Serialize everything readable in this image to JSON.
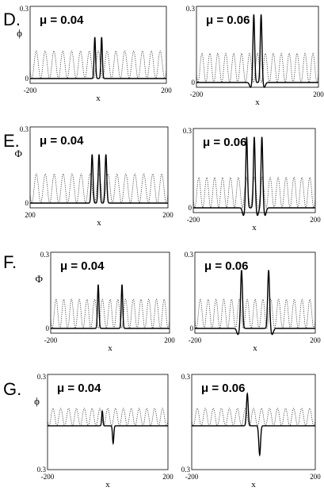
{
  "chart_data": [
    {
      "panel": "D",
      "type": "line",
      "plots": [
        {
          "mu_label": "μ = 0.04",
          "y_tick_top": "0.3",
          "y_tick_bottom": "0",
          "y_axis_label": "ϕ",
          "x_ticks": [
            "-200",
            "200"
          ],
          "x_axis_label": "x",
          "pulses": [
            {
              "center": -10,
              "amp": 0.18,
              "sigma": 3.0
            },
            {
              "center": 10,
              "amp": 0.18,
              "sigma": 3.0
            }
          ],
          "dip": 0.0
        },
        {
          "mu_label": "μ = 0.06",
          "y_tick_top": "0.3",
          "y_tick_bottom": "0",
          "y_axis_label": "",
          "x_ticks": [
            "-200",
            "200"
          ],
          "x_axis_label": "x",
          "pulses": [
            {
              "center": -12,
              "amp": 0.28,
              "sigma": 4.0
            },
            {
              "center": 12,
              "amp": 0.28,
              "sigma": 4.0
            }
          ],
          "dip": 0.02
        }
      ]
    },
    {
      "panel": "E",
      "type": "line",
      "plots": [
        {
          "mu_label": "μ = 0.04",
          "y_tick_top": "0.3",
          "y_tick_bottom": "0",
          "y_axis_label": "Φ",
          "x_ticks": [
            "200",
            "200"
          ],
          "x_axis_label": "x",
          "pulses": [
            {
              "center": -20,
              "amp": 0.2,
              "sigma": 3.5
            },
            {
              "center": 0,
              "amp": 0.2,
              "sigma": 3.5
            },
            {
              "center": 20,
              "amp": 0.2,
              "sigma": 3.5
            }
          ],
          "dip": 0.0
        },
        {
          "mu_label": "μ = 0.06",
          "y_tick_top": "0.3",
          "y_tick_bottom": "0",
          "y_axis_label": "",
          "x_ticks": [
            "-200",
            "200"
          ],
          "x_axis_label": "x",
          "pulses": [
            {
              "center": -25,
              "amp": 0.28,
              "sigma": 4.0
            },
            {
              "center": 0,
              "amp": 0.28,
              "sigma": 4.0
            },
            {
              "center": 25,
              "amp": 0.28,
              "sigma": 4.0
            }
          ],
          "dip": 0.03
        }
      ]
    },
    {
      "panel": "F",
      "type": "line",
      "plots": [
        {
          "mu_label": "μ = 0.04",
          "y_tick_top": "0.3",
          "y_tick_bottom": "0",
          "y_axis_label": "Φ",
          "x_ticks": [
            "-200",
            "200"
          ],
          "x_axis_label": "x",
          "pulses": [
            {
              "center": -40,
              "amp": 0.18,
              "sigma": 3.5
            },
            {
              "center": 40,
              "amp": 0.18,
              "sigma": 3.5
            }
          ],
          "dip": 0.0
        },
        {
          "mu_label": "μ = 0.06",
          "y_tick_top": "0.3",
          "y_tick_bottom": "0",
          "y_axis_label": "",
          "x_ticks": [
            "-200",
            "200"
          ],
          "x_axis_label": "x",
          "pulses": [
            {
              "center": -45,
              "amp": 0.24,
              "sigma": 4.5
            },
            {
              "center": 45,
              "amp": 0.24,
              "sigma": 4.5
            }
          ],
          "dip": 0.025
        }
      ]
    },
    {
      "panel": "G",
      "type": "line",
      "plots": [
        {
          "mu_label": "μ = 0.04",
          "y_tick_top": "0.3",
          "y_tick_bottom": "0.3",
          "y_axis_label": "ϕ",
          "x_ticks": [
            "-200",
            "200"
          ],
          "x_axis_label": "x",
          "pulses": [
            {
              "center": -18,
              "amp": 0.1,
              "sigma": 3.0
            },
            {
              "center": 18,
              "amp": -0.12,
              "sigma": 3.0
            }
          ],
          "dip": 0.0
        },
        {
          "mu_label": "μ = 0.06",
          "y_tick_top": "0.3",
          "y_tick_bottom": "0.3",
          "y_axis_label": "",
          "x_ticks": [
            "-200",
            "200"
          ],
          "x_axis_label": "x",
          "pulses": [
            {
              "center": -20,
              "amp": 0.22,
              "sigma": 4.0
            },
            {
              "center": 20,
              "amp": -0.2,
              "sigma": 4.0
            }
          ],
          "dip": 0.0
        }
      ]
    }
  ],
  "background_wave": {
    "amplitude": 0.12,
    "period": 26
  }
}
